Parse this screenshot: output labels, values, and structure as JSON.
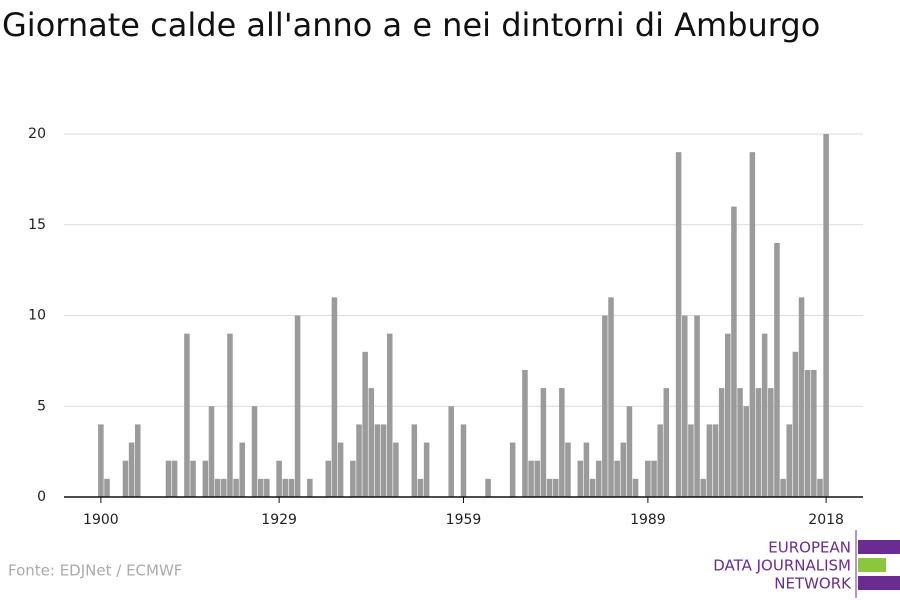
{
  "chart_data": {
    "type": "bar",
    "title": "Giornate calde all'anno a e nei dintorni di Amburgo",
    "source": "Fonte: EDJNet / ECMWF",
    "logo": [
      "EUROPEAN",
      "DATA JOURNALISM",
      "NETWORK"
    ],
    "color": "#9b9b9b",
    "x": [
      1900,
      1901,
      1902,
      1903,
      1904,
      1905,
      1906,
      1907,
      1908,
      1909,
      1910,
      1911,
      1912,
      1913,
      1914,
      1915,
      1916,
      1917,
      1918,
      1919,
      1920,
      1921,
      1922,
      1923,
      1924,
      1925,
      1926,
      1927,
      1928,
      1929,
      1930,
      1931,
      1932,
      1933,
      1934,
      1935,
      1936,
      1937,
      1938,
      1939,
      1940,
      1941,
      1942,
      1943,
      1944,
      1945,
      1946,
      1947,
      1948,
      1949,
      1950,
      1951,
      1952,
      1953,
      1954,
      1955,
      1956,
      1957,
      1958,
      1959,
      1960,
      1961,
      1962,
      1963,
      1964,
      1965,
      1966,
      1967,
      1968,
      1969,
      1970,
      1971,
      1972,
      1973,
      1974,
      1975,
      1976,
      1977,
      1978,
      1979,
      1980,
      1981,
      1982,
      1983,
      1984,
      1985,
      1986,
      1987,
      1988,
      1989,
      1990,
      1991,
      1992,
      1993,
      1994,
      1995,
      1996,
      1997,
      1998,
      1999,
      2000,
      2001,
      2002,
      2003,
      2004,
      2005,
      2006,
      2007,
      2008,
      2009,
      2010,
      2011,
      2012,
      2013,
      2014,
      2015,
      2016,
      2017,
      2018
    ],
    "values": [
      4,
      1,
      0,
      0,
      2,
      3,
      4,
      0,
      0,
      0,
      0,
      2,
      2,
      0,
      9,
      2,
      0,
      2,
      5,
      1,
      1,
      9,
      1,
      3,
      0,
      5,
      1,
      1,
      0,
      2,
      1,
      1,
      10,
      0,
      1,
      0,
      0,
      2,
      11,
      3,
      0,
      2,
      4,
      8,
      6,
      4,
      4,
      9,
      3,
      0,
      0,
      4,
      1,
      3,
      0,
      0,
      0,
      5,
      0,
      4,
      0,
      0,
      0,
      1,
      0,
      0,
      0,
      3,
      0,
      7,
      2,
      2,
      6,
      1,
      1,
      6,
      3,
      0,
      2,
      3,
      1,
      2,
      10,
      11,
      2,
      3,
      5,
      1,
      0,
      2,
      2,
      4,
      6,
      0,
      19,
      10,
      4,
      10,
      1,
      4,
      4,
      6,
      9,
      16,
      6,
      5,
      19,
      6,
      9,
      6,
      14,
      1,
      4,
      8,
      11,
      7,
      7,
      1,
      20
    ],
    "xlim": [
      1894,
      2024
    ],
    "xticks": [
      1900,
      1929,
      1959,
      1989,
      2018
    ],
    "ylim": [
      0,
      20
    ],
    "yticks": [
      0,
      5,
      10,
      15,
      20
    ],
    "grid": true
  }
}
